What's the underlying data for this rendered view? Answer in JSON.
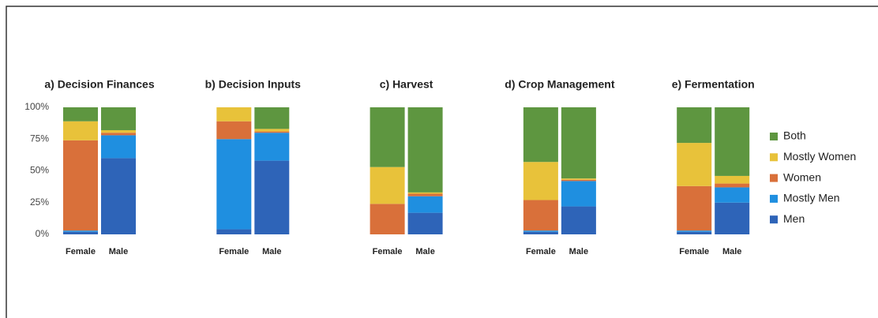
{
  "chart_data": [
    {
      "type": "stacked_bar",
      "title": "a) Decision Finances",
      "categories": [
        "Female",
        "Male"
      ],
      "ylim": [
        0,
        100
      ],
      "yticks": [
        {
          "value": 0,
          "label": "0%"
        },
        {
          "value": 25,
          "label": "25%"
        },
        {
          "value": 50,
          "label": "50%"
        },
        {
          "value": 75,
          "label": "75%"
        },
        {
          "value": 100,
          "label": "100%"
        }
      ],
      "series": [
        {
          "name": "Men",
          "color": "#2e64b8",
          "values": [
            2,
            60
          ]
        },
        {
          "name": "Mostly Men",
          "color": "#1f8fe0",
          "values": [
            1,
            18
          ]
        },
        {
          "name": "Women",
          "color": "#d9703a",
          "values": [
            71,
            2
          ]
        },
        {
          "name": "Mostly Women",
          "color": "#e8c23a",
          "values": [
            15,
            2
          ]
        },
        {
          "name": "Both",
          "color": "#5e9640",
          "values": [
            11,
            18
          ]
        }
      ]
    },
    {
      "type": "stacked_bar",
      "title": "b) Decision Inputs",
      "categories": [
        "Female",
        "Male"
      ],
      "ylim": [
        0,
        100
      ],
      "series": [
        {
          "name": "Men",
          "color": "#2e64b8",
          "values": [
            4,
            58
          ]
        },
        {
          "name": "Mostly Men",
          "color": "#1f8fe0",
          "values": [
            71,
            22
          ]
        },
        {
          "name": "Women",
          "color": "#d9703a",
          "values": [
            14,
            1
          ]
        },
        {
          "name": "Mostly Women",
          "color": "#e8c23a",
          "values": [
            11,
            2
          ]
        },
        {
          "name": "Both",
          "color": "#5e9640",
          "values": [
            0,
            17
          ]
        }
      ]
    },
    {
      "type": "stacked_bar",
      "title": "c) Harvest",
      "categories": [
        "Female",
        "Male"
      ],
      "ylim": [
        0,
        100
      ],
      "series": [
        {
          "name": "Men",
          "color": "#2e64b8",
          "values": [
            0,
            17
          ]
        },
        {
          "name": "Mostly Men",
          "color": "#1f8fe0",
          "values": [
            0,
            13
          ]
        },
        {
          "name": "Women",
          "color": "#d9703a",
          "values": [
            24,
            2
          ]
        },
        {
          "name": "Mostly Women",
          "color": "#e8c23a",
          "values": [
            29,
            1
          ]
        },
        {
          "name": "Both",
          "color": "#5e9640",
          "values": [
            47,
            67
          ]
        }
      ]
    },
    {
      "type": "stacked_bar",
      "title": "d) Crop Management",
      "categories": [
        "Female",
        "Male"
      ],
      "ylim": [
        0,
        100
      ],
      "series": [
        {
          "name": "Men",
          "color": "#2e64b8",
          "values": [
            2,
            22
          ]
        },
        {
          "name": "Mostly Men",
          "color": "#1f8fe0",
          "values": [
            1,
            20
          ]
        },
        {
          "name": "Women",
          "color": "#d9703a",
          "values": [
            24,
            1
          ]
        },
        {
          "name": "Mostly Women",
          "color": "#e8c23a",
          "values": [
            30,
            1
          ]
        },
        {
          "name": "Both",
          "color": "#5e9640",
          "values": [
            43,
            56
          ]
        }
      ]
    },
    {
      "type": "stacked_bar",
      "title": "e) Fermentation",
      "categories": [
        "Female",
        "Male"
      ],
      "ylim": [
        0,
        100
      ],
      "legend": "right",
      "series": [
        {
          "name": "Men",
          "color": "#2e64b8",
          "values": [
            2,
            25
          ]
        },
        {
          "name": "Mostly Men",
          "color": "#1f8fe0",
          "values": [
            1,
            12
          ]
        },
        {
          "name": "Women",
          "color": "#d9703a",
          "values": [
            35,
            3
          ]
        },
        {
          "name": "Mostly Women",
          "color": "#e8c23a",
          "values": [
            34,
            6
          ]
        },
        {
          "name": "Both",
          "color": "#5e9640",
          "values": [
            28,
            54
          ]
        }
      ]
    }
  ]
}
